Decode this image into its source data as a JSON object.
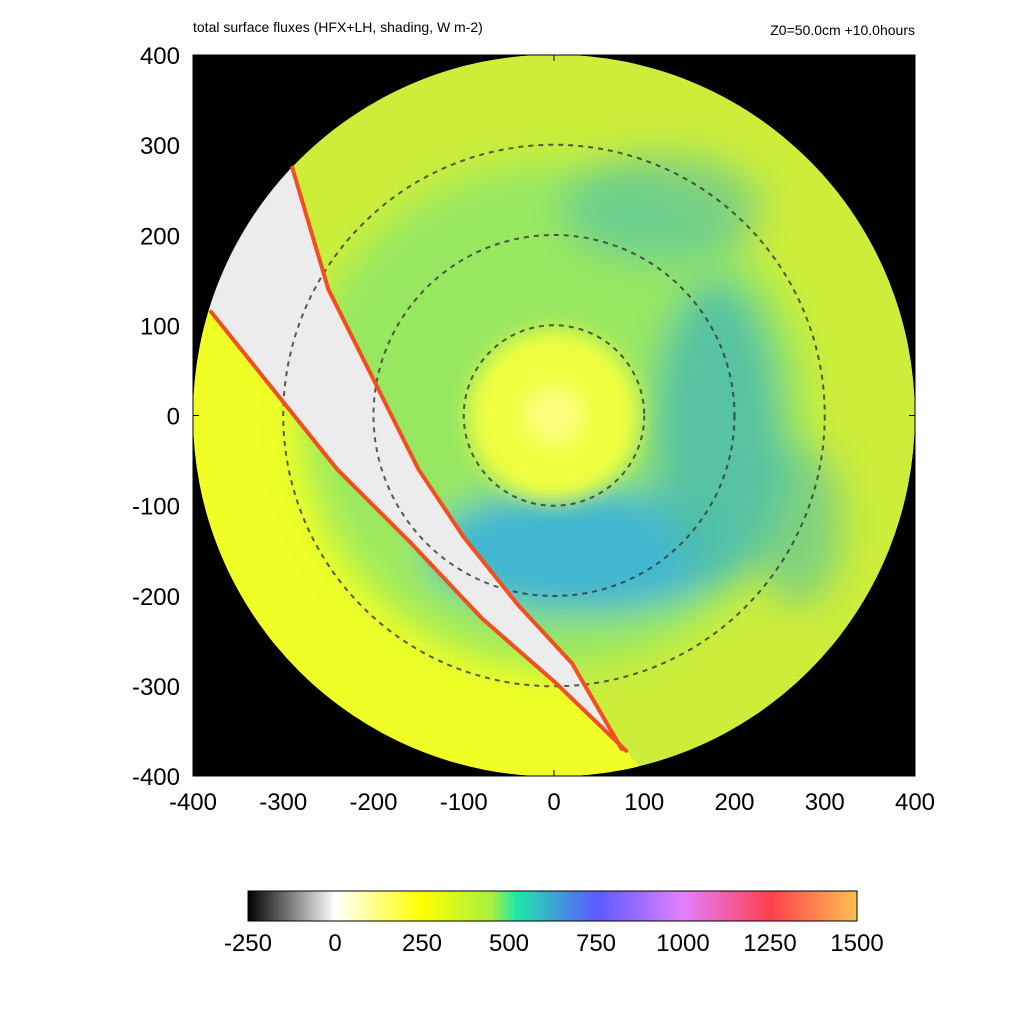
{
  "header": {
    "title": "total surface fluxes (HFX+LH, shading, W m-2)",
    "subtitle": "Z0=50.0cm  +10.0hours"
  },
  "chart_data": {
    "type": "heatmap",
    "title": "total surface fluxes (HFX+LH, shading, W m-2)",
    "subtitle": "Z0=50.0cm  +10.0hours",
    "xlim": [
      -400,
      400
    ],
    "ylim": [
      -400,
      400
    ],
    "x_ticks": [
      -400,
      -300,
      -200,
      -100,
      0,
      100,
      200,
      300,
      400
    ],
    "y_ticks": [
      -400,
      -300,
      -200,
      -100,
      0,
      100,
      200,
      300,
      400
    ],
    "x_tick_labels": [
      "-400",
      "-300",
      "-200",
      "-100",
      "0",
      "100",
      "200",
      "300",
      "400"
    ],
    "y_tick_labels": [
      "-400",
      "-300",
      "-200",
      "-100",
      "0",
      "100",
      "200",
      "300",
      "400"
    ],
    "domain_radius": 400,
    "background_color": "#000000",
    "range_rings": [
      100,
      200,
      300
    ],
    "colorbar": {
      "min": -250,
      "max": 1500,
      "ticks": [
        -250,
        0,
        250,
        500,
        750,
        1000,
        1250,
        1500
      ],
      "tick_labels": [
        "-250",
        "0",
        "250",
        "500",
        "750",
        "1000",
        "1250",
        "1500"
      ],
      "stops": [
        {
          "value": -250,
          "color": "#000000"
        },
        {
          "value": 0,
          "color": "#ffffff"
        },
        {
          "value": 250,
          "color": "#ffff00"
        },
        {
          "value": 450,
          "color": "#a8f040"
        },
        {
          "value": 520,
          "color": "#20e8a8"
        },
        {
          "value": 750,
          "color": "#5a5aff"
        },
        {
          "value": 1000,
          "color": "#e080ff"
        },
        {
          "value": 1250,
          "color": "#ff4050"
        },
        {
          "value": 1500,
          "color": "#ffc050"
        }
      ]
    },
    "regions": [
      {
        "name": "eye",
        "value": 130,
        "color": "#ffff80",
        "center": [
          0,
          0
        ]
      },
      {
        "name": "inner core",
        "value": 260,
        "color": "#f0ff40"
      },
      {
        "name": "eyewall ring",
        "value": 450,
        "color": "#8ee668"
      },
      {
        "name": "southern band",
        "value": 560,
        "color": "#3cb4d8"
      },
      {
        "name": "eastern band",
        "value": 540,
        "color": "#50c0a8"
      },
      {
        "name": "outer field",
        "value": 330,
        "color": "#ccee3a"
      },
      {
        "name": "southwest land region",
        "value": 260,
        "color": "#f0ff26"
      },
      {
        "name": "coastal strip",
        "value": 15,
        "color": "#ececec"
      }
    ],
    "strip_boundaries": [
      {
        "name": "inner boundary",
        "color": "#f05020",
        "points": [
          [
            -290,
            275
          ],
          [
            -250,
            140
          ],
          [
            -200,
            40
          ],
          [
            -150,
            -60
          ],
          [
            -100,
            -135
          ],
          [
            -40,
            -210
          ],
          [
            20,
            -275
          ],
          [
            75,
            -370
          ]
        ]
      },
      {
        "name": "outer boundary",
        "color": "#f05020",
        "points": [
          [
            -380,
            115
          ],
          [
            -320,
            40
          ],
          [
            -240,
            -60
          ],
          [
            -160,
            -140
          ],
          [
            -80,
            -225
          ],
          [
            0,
            -295
          ],
          [
            80,
            -372
          ]
        ]
      }
    ]
  }
}
